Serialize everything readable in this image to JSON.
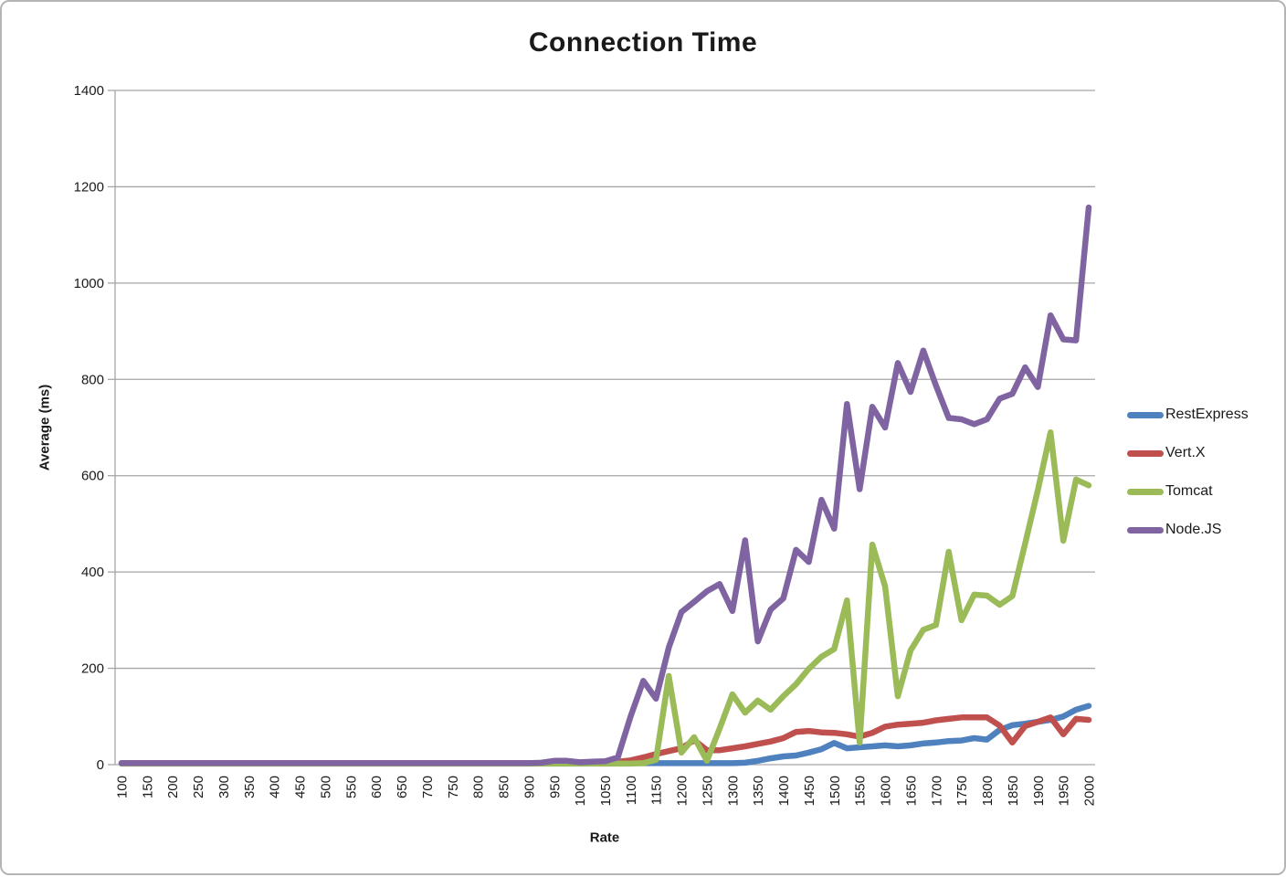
{
  "title": "Connection Time",
  "chart_data": {
    "type": "line",
    "title": "Connection Time",
    "xlabel": "Rate",
    "ylabel": "Average (ms)",
    "ylim": [
      0,
      1400
    ],
    "y_ticks": [
      0,
      200,
      400,
      600,
      800,
      1000,
      1200,
      1400
    ],
    "x_label_interval": 2,
    "grid": "horizontal",
    "legend_position": "right",
    "axis_color": "#A6A6A6",
    "text_color": "#1a1a1a",
    "x": [
      100,
      125,
      150,
      175,
      200,
      225,
      250,
      275,
      300,
      325,
      350,
      375,
      400,
      425,
      450,
      475,
      500,
      525,
      550,
      575,
      600,
      625,
      650,
      675,
      700,
      725,
      750,
      775,
      800,
      825,
      850,
      875,
      900,
      925,
      950,
      975,
      1000,
      1025,
      1050,
      1075,
      1100,
      1125,
      1150,
      1175,
      1200,
      1225,
      1250,
      1275,
      1300,
      1325,
      1350,
      1375,
      1400,
      1425,
      1450,
      1475,
      1500,
      1525,
      1550,
      1575,
      1600,
      1625,
      1650,
      1675,
      1700,
      1725,
      1750,
      1775,
      1800,
      1825,
      1850,
      1875,
      1900,
      1925,
      1950,
      1975,
      2000
    ],
    "series": [
      {
        "name": "RestExpress",
        "color": "#4E81BD",
        "values": [
          3,
          3,
          3,
          3,
          3,
          3,
          3,
          3,
          3,
          3,
          3,
          3,
          3,
          3,
          3,
          3,
          3,
          3,
          3,
          3,
          3,
          3,
          3,
          3,
          3,
          3,
          3,
          3,
          3,
          3,
          3,
          3,
          3,
          3,
          3,
          3,
          3,
          3,
          3,
          3,
          3,
          3,
          3,
          3,
          3,
          3,
          3,
          3,
          3,
          4,
          8,
          13,
          17,
          19,
          25,
          32,
          45,
          34,
          36,
          38,
          40,
          38,
          40,
          44,
          46,
          49,
          50,
          55,
          52,
          72,
          82,
          85,
          89,
          93,
          100,
          114,
          122
        ]
      },
      {
        "name": "Vert.X",
        "color": "#C0504D",
        "values": [
          3,
          3,
          3,
          3,
          3,
          3,
          3,
          3,
          3,
          3,
          3,
          3,
          3,
          3,
          3,
          3,
          3,
          3,
          3,
          3,
          3,
          3,
          3,
          3,
          3,
          3,
          3,
          3,
          3,
          3,
          3,
          3,
          3,
          3,
          3,
          3,
          3,
          4,
          5,
          6,
          9,
          15,
          22,
          28,
          34,
          51,
          30,
          30,
          34,
          38,
          43,
          48,
          55,
          68,
          70,
          67,
          66,
          63,
          58,
          66,
          79,
          83,
          85,
          87,
          92,
          95,
          98,
          98,
          98,
          81,
          46,
          80,
          89,
          98,
          63,
          95,
          93
        ]
      },
      {
        "name": "Tomcat",
        "color": "#9BBB59",
        "values": [
          2,
          2,
          2,
          2,
          2,
          2,
          2,
          2,
          2,
          2,
          2,
          2,
          2,
          2,
          2,
          2,
          2,
          2,
          2,
          2,
          2,
          2,
          2,
          2,
          2,
          2,
          2,
          2,
          2,
          2,
          2,
          2,
          2,
          2,
          2,
          2,
          2,
          2,
          2,
          2,
          2,
          3,
          10,
          184,
          25,
          57,
          8,
          75,
          146,
          108,
          133,
          114,
          142,
          167,
          199,
          224,
          240,
          341,
          46,
          457,
          370,
          142,
          237,
          280,
          290,
          442,
          300,
          353,
          351,
          332,
          350,
          459,
          570,
          690,
          465,
          592,
          580
        ]
      },
      {
        "name": "Node.JS",
        "color": "#8064A2",
        "values": [
          3,
          3,
          3,
          3,
          3,
          3,
          3,
          3,
          3,
          3,
          3,
          3,
          3,
          3,
          3,
          3,
          3,
          3,
          3,
          3,
          3,
          3,
          3,
          3,
          3,
          3,
          3,
          3,
          3,
          3,
          3,
          3,
          3,
          4,
          8,
          8,
          5,
          6,
          7,
          15,
          100,
          174,
          137,
          243,
          317,
          338,
          360,
          375,
          319,
          466,
          256,
          322,
          345,
          446,
          421,
          550,
          490,
          749,
          572,
          743,
          700,
          834,
          774,
          860,
          787,
          720,
          717,
          707,
          717,
          760,
          770,
          825,
          784,
          933,
          883,
          881,
          1157
        ]
      }
    ]
  }
}
